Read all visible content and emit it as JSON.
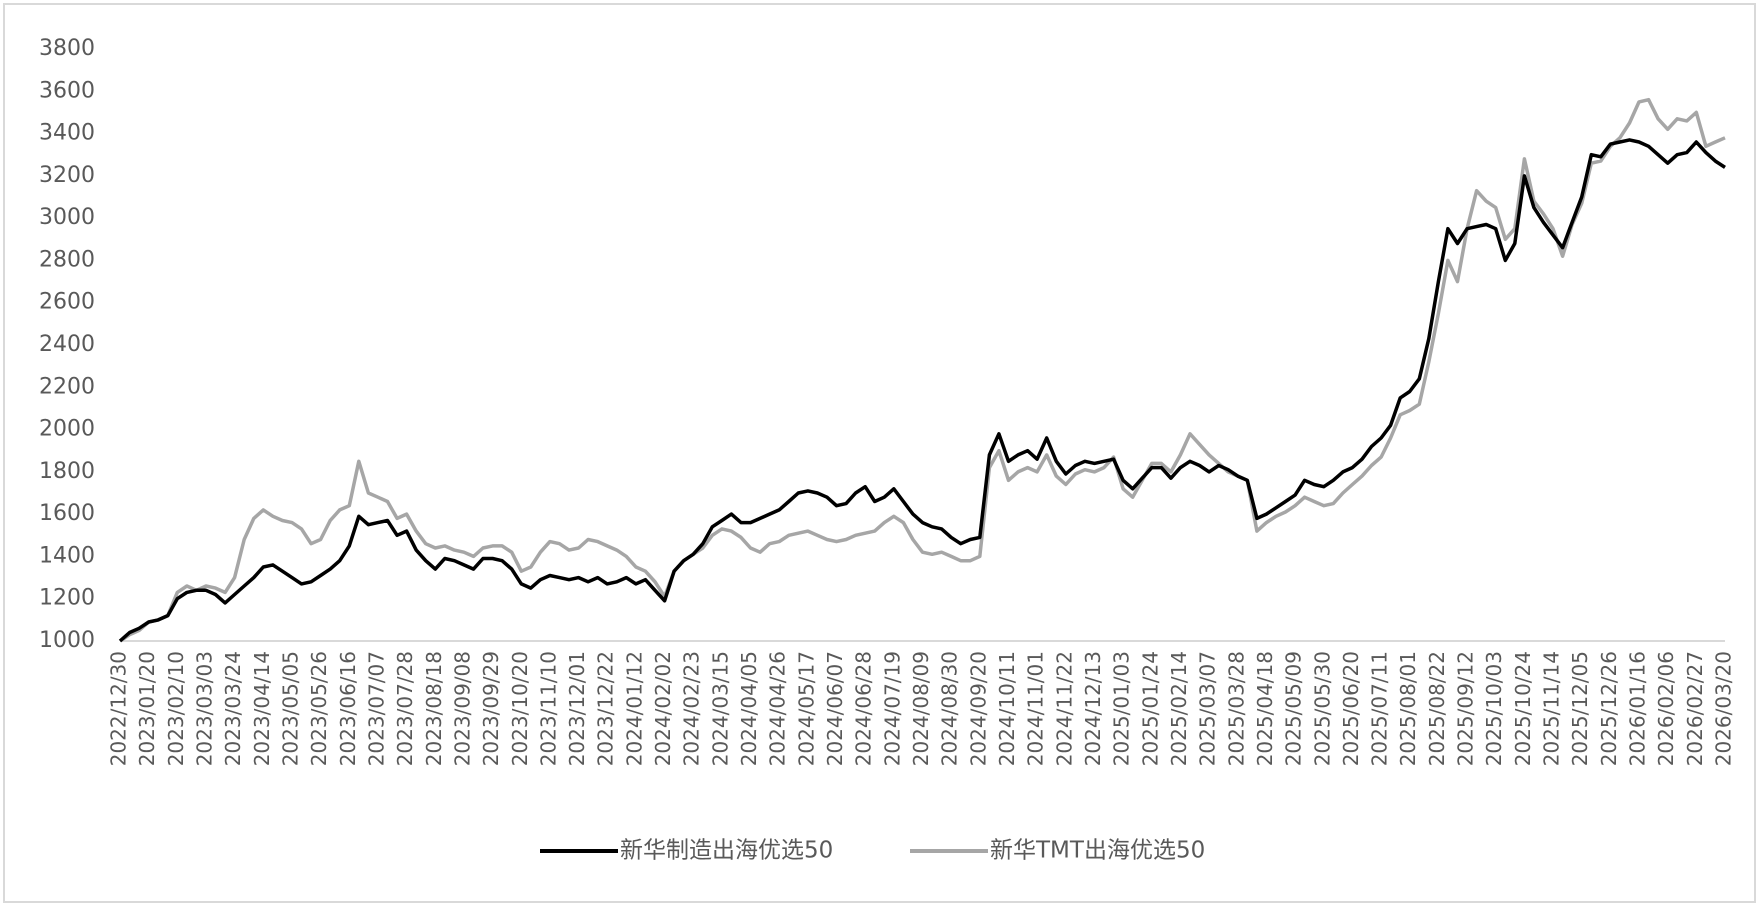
{
  "chart_data": {
    "type": "line",
    "categories": [
      "2022/12/30",
      null,
      null,
      "2023/01/20",
      null,
      null,
      "2023/02/10",
      null,
      null,
      "2023/03/03",
      null,
      null,
      "2023/03/24",
      null,
      null,
      "2023/04/14",
      null,
      null,
      "2023/05/05",
      null,
      null,
      "2023/05/26",
      null,
      null,
      "2023/06/16",
      null,
      null,
      "2023/07/07",
      null,
      null,
      "2023/07/28",
      null,
      null,
      "2023/08/18",
      null,
      null,
      "2023/09/08",
      null,
      null,
      "2023/09/29",
      null,
      null,
      "2023/10/20",
      null,
      null,
      "2023/11/10",
      null,
      null,
      "2023/12/01",
      null,
      null,
      "2023/12/22",
      null,
      null,
      "2024/01/12",
      null,
      null,
      "2024/02/02",
      null,
      null,
      "2024/02/23",
      null,
      null,
      "2024/03/15",
      null,
      null,
      "2024/04/05",
      null,
      null,
      "2024/04/26",
      null,
      null,
      "2024/05/17",
      null,
      null,
      "2024/06/07",
      null,
      null,
      "2024/06/28",
      null,
      null,
      "2024/07/19",
      null,
      null,
      "2024/08/09",
      null,
      null,
      "2024/08/30",
      null,
      null,
      "2024/09/20",
      null,
      null,
      "2024/10/11",
      null,
      null,
      "2024/11/01",
      null,
      null,
      "2024/11/22",
      null,
      null,
      "2024/12/13",
      null,
      null,
      "2025/01/03",
      null,
      null,
      "2025/01/24",
      null,
      null,
      "2025/02/14",
      null,
      null,
      "2025/03/07",
      null,
      null,
      "2025/03/28",
      null,
      null,
      "2025/04/18",
      null,
      null,
      "2025/05/09",
      null,
      null,
      "2025/05/30",
      null,
      null,
      "2025/06/20",
      null,
      null,
      "2025/07/11",
      null,
      null,
      "2025/08/01",
      null,
      null,
      "2025/08/22",
      null,
      null,
      "2025/09/12",
      null,
      null,
      "2025/10/03",
      null,
      null,
      "2025/10/24",
      null,
      null,
      "2025/11/14",
      null,
      null,
      "2025/12/05",
      null,
      null,
      "2025/12/26",
      null,
      null,
      "2026/01/16",
      null,
      null,
      "2026/02/06",
      null,
      null,
      "2026/02/27",
      null,
      null,
      "2026/03/20"
    ],
    "series": [
      {
        "name": "新华制造出海优选50",
        "color": "#000000",
        "values": [
          1000,
          1040,
          1060,
          1090,
          1100,
          1120,
          1200,
          1230,
          1240,
          1240,
          1220,
          1180,
          1220,
          1260,
          1300,
          1350,
          1360,
          1330,
          1300,
          1270,
          1280,
          1310,
          1340,
          1380,
          1450,
          1590,
          1550,
          1560,
          1570,
          1500,
          1520,
          1430,
          1380,
          1340,
          1390,
          1380,
          1360,
          1340,
          1390,
          1390,
          1380,
          1340,
          1270,
          1250,
          1290,
          1310,
          1300,
          1290,
          1300,
          1280,
          1300,
          1270,
          1280,
          1300,
          1270,
          1290,
          1240,
          1190,
          1330,
          1380,
          1410,
          1460,
          1540,
          1570,
          1600,
          1560,
          1560,
          1580,
          1600,
          1620,
          1660,
          1700,
          1710,
          1700,
          1680,
          1640,
          1650,
          1700,
          1730,
          1660,
          1680,
          1720,
          1660,
          1600,
          1560,
          1540,
          1530,
          1490,
          1460,
          1480,
          1490,
          1880,
          1980,
          1850,
          1880,
          1900,
          1860,
          1960,
          1850,
          1790,
          1830,
          1850,
          1840,
          1850,
          1860,
          1760,
          1720,
          1770,
          1820,
          1820,
          1770,
          1820,
          1850,
          1830,
          1800,
          1830,
          1810,
          1780,
          1760,
          1580,
          1600,
          1630,
          1660,
          1690,
          1760,
          1740,
          1730,
          1760,
          1800,
          1820,
          1860,
          1920,
          1960,
          2020,
          2150,
          2180,
          2240,
          2430,
          2700,
          2950,
          2880,
          2950,
          2960,
          2970,
          2950,
          2800,
          2880,
          3200,
          3050,
          2980,
          2920,
          2860,
          2980,
          3100,
          3300,
          3290,
          3350,
          3360,
          3370,
          3360,
          3340,
          3300,
          3260,
          3300,
          3310,
          3360,
          3310,
          3270,
          3240
        ]
      },
      {
        "name": "新华TMT出海优选50",
        "color": "#a6a6a6",
        "values": [
          1000,
          1030,
          1050,
          1090,
          1100,
          1120,
          1230,
          1260,
          1240,
          1260,
          1250,
          1230,
          1300,
          1480,
          1580,
          1620,
          1590,
          1570,
          1560,
          1530,
          1460,
          1480,
          1570,
          1620,
          1640,
          1850,
          1700,
          1680,
          1660,
          1580,
          1600,
          1520,
          1460,
          1440,
          1450,
          1430,
          1420,
          1400,
          1440,
          1450,
          1450,
          1420,
          1330,
          1350,
          1420,
          1470,
          1460,
          1430,
          1440,
          1480,
          1470,
          1450,
          1430,
          1400,
          1350,
          1330,
          1280,
          1210,
          1330,
          1380,
          1410,
          1440,
          1500,
          1530,
          1520,
          1490,
          1440,
          1420,
          1460,
          1470,
          1500,
          1510,
          1520,
          1500,
          1480,
          1470,
          1480,
          1500,
          1510,
          1520,
          1560,
          1590,
          1560,
          1480,
          1420,
          1410,
          1420,
          1400,
          1380,
          1380,
          1400,
          1820,
          1900,
          1760,
          1800,
          1820,
          1800,
          1880,
          1780,
          1740,
          1790,
          1810,
          1800,
          1820,
          1870,
          1720,
          1680,
          1760,
          1840,
          1840,
          1800,
          1880,
          1980,
          1930,
          1880,
          1840,
          1800,
          1780,
          1760,
          1520,
          1560,
          1590,
          1610,
          1640,
          1680,
          1660,
          1640,
          1650,
          1700,
          1740,
          1780,
          1830,
          1870,
          1960,
          2070,
          2090,
          2120,
          2320,
          2550,
          2800,
          2700,
          2950,
          3130,
          3080,
          3050,
          2900,
          2950,
          3280,
          3080,
          3020,
          2950,
          2820,
          2970,
          3070,
          3260,
          3270,
          3340,
          3380,
          3450,
          3550,
          3560,
          3470,
          3420,
          3470,
          3460,
          3500,
          3340,
          3360,
          3380
        ]
      }
    ],
    "ylim": [
      1000,
      3800
    ],
    "yticks": [
      1000,
      1200,
      1400,
      1600,
      1800,
      2000,
      2200,
      2400,
      2600,
      2800,
      3000,
      3200,
      3400,
      3600,
      3800
    ],
    "grid": false,
    "legend": "bottom"
  }
}
